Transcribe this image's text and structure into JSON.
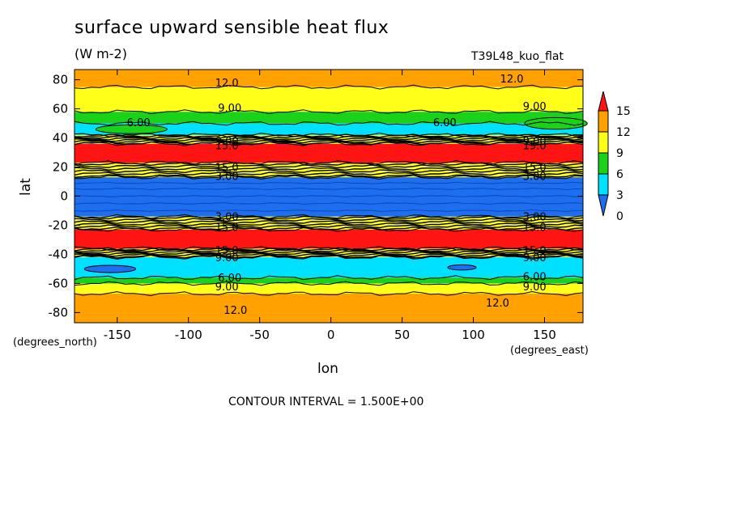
{
  "header": {
    "title": "surface upward sensible heat flux",
    "units": "(W m-2)",
    "run_id": "T39L48_kuo_flat"
  },
  "footer": {
    "contour_interval": "CONTOUR INTERVAL = 1.500E+00"
  },
  "chart_data": {
    "type": "heatmap",
    "title": "surface upward sensible heat flux",
    "subtitle": "(W m-2)",
    "xlabel": "lon",
    "ylabel": "lat",
    "x_units": "(degrees_east)",
    "y_units": "(degrees_north)",
    "xlim": [
      -180,
      177
    ],
    "ylim": [
      -87,
      87
    ],
    "xticks": [
      -150,
      -100,
      -50,
      0,
      50,
      100,
      150
    ],
    "xtick_labels": [
      "-150",
      "-100",
      "-50",
      "0",
      "50",
      "100",
      "150"
    ],
    "yticks": [
      -80,
      -60,
      -40,
      -20,
      0,
      20,
      40,
      60,
      80
    ],
    "ytick_labels": [
      "-80",
      "-60",
      "-40",
      "-20",
      "0",
      "20",
      "40",
      "60",
      "80"
    ],
    "colorbar": {
      "levels": [
        0,
        3,
        6,
        9,
        12,
        15
      ],
      "labels": [
        "0",
        "3",
        "6",
        "9",
        "12",
        "15"
      ],
      "colors": [
        "#1e6ff0",
        "#00e1ff",
        "#19d219",
        "#ffff19",
        "#ffa100",
        "#ff1414"
      ]
    },
    "contour_interval": 1.5,
    "zonal_bands": [
      {
        "lat_from": -87,
        "lat_to": -67,
        "value_class": 12
      },
      {
        "lat_from": -67,
        "lat_to": -60,
        "value_class": 9
      },
      {
        "lat_from": -60,
        "lat_to": -56,
        "value_class": 6
      },
      {
        "lat_from": -56,
        "lat_to": -42,
        "value_class": 3
      },
      {
        "lat_from": -42,
        "lat_to": -36,
        "value_class": 9
      },
      {
        "lat_from": -36,
        "lat_to": -23,
        "value_class": 15
      },
      {
        "lat_from": -23,
        "lat_to": -14,
        "value_class": 9
      },
      {
        "lat_from": -14,
        "lat_to": 13,
        "value_class": 0
      },
      {
        "lat_from": 13,
        "lat_to": 23,
        "value_class": 9
      },
      {
        "lat_from": 23,
        "lat_to": 36,
        "value_class": 15
      },
      {
        "lat_from": 36,
        "lat_to": 42,
        "value_class": 9
      },
      {
        "lat_from": 42,
        "lat_to": 50,
        "value_class": 3
      },
      {
        "lat_from": 50,
        "lat_to": 58,
        "value_class": 6
      },
      {
        "lat_from": 58,
        "lat_to": 75,
        "value_class": 9
      },
      {
        "lat_from": 75,
        "lat_to": 87,
        "value_class": 12
      }
    ],
    "patches": [
      {
        "lon": -155,
        "lat": -50,
        "lon_half": 18,
        "lat_half": 2.5,
        "value_class": 0
      },
      {
        "lon": 92,
        "lat": -49,
        "lon_half": 10,
        "lat_half": 1.8,
        "value_class": 0
      },
      {
        "lon": 158,
        "lat": 50,
        "lon_half": 22,
        "lat_half": 4,
        "value_class": 6
      },
      {
        "lon": -140,
        "lat": 46,
        "lon_half": 25,
        "lat_half": 3,
        "value_class": 6
      }
    ],
    "contour_labels": [
      {
        "text": "12.0",
        "lon": -73,
        "lat": 78
      },
      {
        "text": "12.0",
        "lon": 127,
        "lat": 81
      },
      {
        "text": "9.00",
        "lon": -71,
        "lat": 61
      },
      {
        "text": "9.00",
        "lon": 143,
        "lat": 62
      },
      {
        "text": "6.00",
        "lon": -135,
        "lat": 51
      },
      {
        "text": "6.00",
        "lon": 80,
        "lat": 51
      },
      {
        "text": "9.00",
        "lon": -73,
        "lat": 38
      },
      {
        "text": "15.0",
        "lon": -73,
        "lat": 35
      },
      {
        "text": "9.00",
        "lon": 143,
        "lat": 38
      },
      {
        "text": "15.0",
        "lon": 143,
        "lat": 35
      },
      {
        "text": "15.0",
        "lon": -73,
        "lat": 20
      },
      {
        "text": "3.00",
        "lon": -73,
        "lat": 14
      },
      {
        "text": "15.0",
        "lon": 143,
        "lat": 20
      },
      {
        "text": "3.00",
        "lon": 143,
        "lat": 14
      },
      {
        "text": "3.00",
        "lon": -73,
        "lat": -14
      },
      {
        "text": "15.0",
        "lon": -73,
        "lat": -21
      },
      {
        "text": "3.00",
        "lon": 143,
        "lat": -14
      },
      {
        "text": "15.0",
        "lon": 143,
        "lat": -21
      },
      {
        "text": "15.0",
        "lon": -73,
        "lat": -37
      },
      {
        "text": "9.00",
        "lon": -73,
        "lat": -42
      },
      {
        "text": "15.0",
        "lon": 143,
        "lat": -37
      },
      {
        "text": "9.00",
        "lon": 143,
        "lat": -42
      },
      {
        "text": "6.00",
        "lon": -71,
        "lat": -56
      },
      {
        "text": "6.00",
        "lon": 143,
        "lat": -55
      },
      {
        "text": "9.00",
        "lon": -73,
        "lat": -62
      },
      {
        "text": "9.00",
        "lon": 143,
        "lat": -62
      },
      {
        "text": "12.0",
        "lon": -67,
        "lat": -78
      },
      {
        "text": "12.0",
        "lon": 117,
        "lat": -73
      }
    ]
  }
}
